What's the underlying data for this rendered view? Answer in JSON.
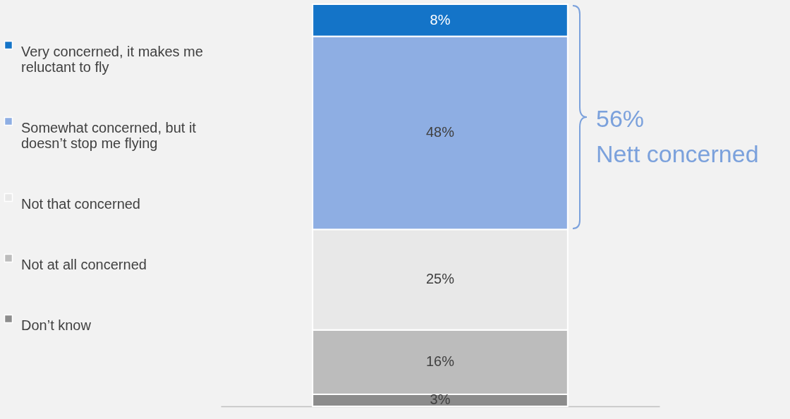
{
  "chart_data": {
    "type": "bar",
    "stacked": true,
    "categories": [
      null
    ],
    "ylim": [
      0,
      100
    ],
    "tick_labels": false,
    "legend": "left",
    "series": [
      {
        "name": "Don’t know",
        "color": "#8c8c8c",
        "values": [
          3
        ],
        "value_labels": [
          "3%"
        ]
      },
      {
        "name": "Not at all concerned",
        "color": "#bcbcbc",
        "values": [
          16
        ],
        "value_labels": [
          "16%"
        ]
      },
      {
        "name": "Not that concerned",
        "color": "#e8e8e8",
        "values": [
          25
        ],
        "value_labels": [
          "25%"
        ]
      },
      {
        "name": "Somewhat concerned, but it doesn’t stop me flying",
        "color": "#8eaee3",
        "values": [
          48
        ],
        "value_labels": [
          "48%"
        ]
      },
      {
        "name": "Very concerned, it makes me reluctant to fly",
        "color": "#1474c8",
        "values": [
          8
        ],
        "value_labels": [
          "8%"
        ]
      }
    ],
    "annotations": [
      "56%",
      "Nett concerned"
    ]
  }
}
